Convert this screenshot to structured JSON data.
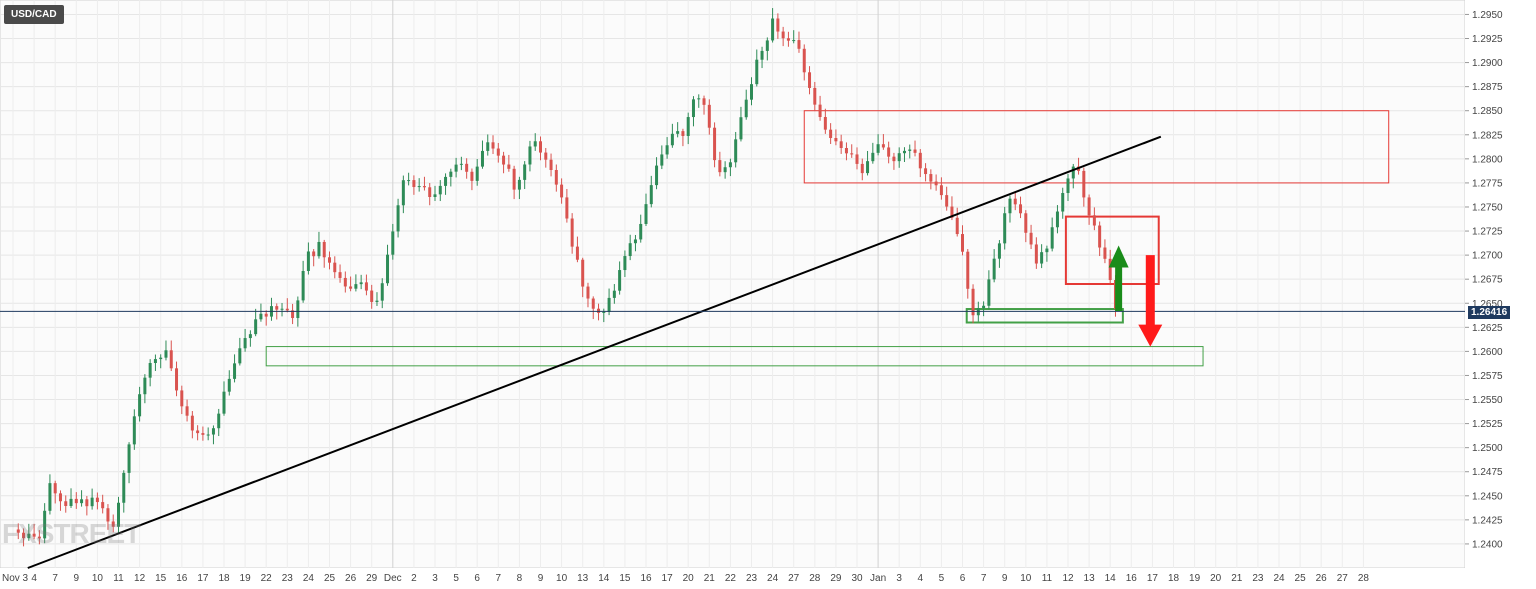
{
  "symbol": "USD/CAD",
  "watermark": "FXSTREET",
  "current_price_label": "1.26416",
  "colors": {
    "bull": "#2e8b57",
    "bear": "#d9534f",
    "grid": "#e6e6e6",
    "trendline": "#000000",
    "resistance_box": "#e53935",
    "support_box": "#43a047",
    "arrow_up": "#1a8c1a",
    "arrow_down": "#ff1a1a",
    "price_line": "#1f3a5f"
  },
  "chart_data": {
    "type": "candlestick",
    "ylim": [
      1.2375,
      1.2965
    ],
    "y_ticks": [
      "1.2400",
      "1.2425",
      "1.2450",
      "1.2475",
      "1.2500",
      "1.2525",
      "1.2550",
      "1.2575",
      "1.2600",
      "1.2625",
      "1.2650",
      "1.2675",
      "1.2700",
      "1.2725",
      "1.2750",
      "1.2775",
      "1.2800",
      "1.2825",
      "1.2850",
      "1.2875",
      "1.2900",
      "1.2925",
      "1.2950"
    ],
    "x_ticks": [
      "Nov 3",
      "4",
      "7",
      "9",
      "10",
      "11",
      "12",
      "15",
      "16",
      "17",
      "18",
      "19",
      "22",
      "23",
      "24",
      "25",
      "26",
      "29",
      "Dec",
      "2",
      "3",
      "5",
      "6",
      "7",
      "8",
      "9",
      "10",
      "13",
      "14",
      "15",
      "16",
      "17",
      "20",
      "21",
      "22",
      "23",
      "24",
      "27",
      "28",
      "29",
      "30",
      "Jan",
      "3",
      "4",
      "5",
      "6",
      "7",
      "9",
      "10",
      "11",
      "12",
      "13",
      "14",
      "16",
      "17",
      "18",
      "19",
      "20",
      "21",
      "23",
      "24",
      "25",
      "26",
      "27",
      "28"
    ],
    "current_price": 1.26416,
    "close_path": [
      [
        0,
        1.2415
      ],
      [
        1.2,
        1.24
      ],
      [
        1.8,
        1.2465
      ],
      [
        2.5,
        1.244
      ],
      [
        4,
        1.2445
      ],
      [
        4.8,
        1.2415
      ],
      [
        5.4,
        1.25
      ],
      [
        6.4,
        1.259
      ],
      [
        7.2,
        1.26
      ],
      [
        7.8,
        1.2555
      ],
      [
        8.5,
        1.252
      ],
      [
        9.2,
        1.251
      ],
      [
        9.8,
        1.254
      ],
      [
        10.6,
        1.259
      ],
      [
        11.2,
        1.262
      ],
      [
        12,
        1.264
      ],
      [
        12.6,
        1.265
      ],
      [
        13.2,
        1.263
      ],
      [
        14,
        1.27
      ],
      [
        14.6,
        1.271
      ],
      [
        15.3,
        1.268
      ],
      [
        16,
        1.266
      ],
      [
        16.5,
        1.267
      ],
      [
        17.2,
        1.2645
      ],
      [
        17.8,
        1.27
      ],
      [
        18.5,
        1.278
      ],
      [
        19.2,
        1.277
      ],
      [
        20,
        1.276
      ],
      [
        20.6,
        1.279
      ],
      [
        21.2,
        1.2795
      ],
      [
        21.8,
        1.278
      ],
      [
        22.5,
        1.2815
      ],
      [
        23.2,
        1.28
      ],
      [
        23.8,
        1.277
      ],
      [
        24.6,
        1.282
      ],
      [
        25.3,
        1.28
      ],
      [
        26,
        1.276
      ],
      [
        26.6,
        1.27
      ],
      [
        27.2,
        1.266
      ],
      [
        27.8,
        1.264
      ],
      [
        28.4,
        1.2655
      ],
      [
        29,
        1.27
      ],
      [
        29.8,
        1.273
      ],
      [
        30.5,
        1.279
      ],
      [
        31.2,
        1.282
      ],
      [
        31.8,
        1.283
      ],
      [
        32.3,
        1.287
      ],
      [
        32.8,
        1.286
      ],
      [
        33.4,
        1.278
      ],
      [
        34,
        1.28
      ],
      [
        34.8,
        1.286
      ],
      [
        35.4,
        1.291
      ],
      [
        36,
        1.294
      ],
      [
        36.6,
        1.2925
      ],
      [
        37.2,
        1.2915
      ],
      [
        37.8,
        1.287
      ],
      [
        38.4,
        1.283
      ],
      [
        39,
        1.2815
      ],
      [
        39.6,
        1.2805
      ],
      [
        40.3,
        1.2785
      ],
      [
        41,
        1.281
      ],
      [
        41.7,
        1.28
      ],
      [
        42.4,
        1.2815
      ],
      [
        43.1,
        1.279
      ],
      [
        43.8,
        1.277
      ],
      [
        44.4,
        1.274
      ],
      [
        45,
        1.27
      ],
      [
        45.5,
        1.264
      ],
      [
        46,
        1.265
      ],
      [
        46.6,
        1.27
      ],
      [
        47.2,
        1.2765
      ],
      [
        47.9,
        1.2735
      ],
      [
        48.5,
        1.269
      ],
      [
        49.2,
        1.272
      ],
      [
        49.8,
        1.277
      ],
      [
        50.3,
        1.28
      ],
      [
        50.8,
        1.276
      ],
      [
        51.3,
        1.2725
      ],
      [
        51.8,
        1.269
      ],
      [
        52.3,
        1.2641
      ]
    ],
    "trendline": {
      "from": [
        0.7,
        1.2375
      ],
      "to": [
        54.4,
        1.2823
      ]
    },
    "zones": [
      {
        "kind": "resistance",
        "x0": 37.5,
        "x1": 65.2,
        "y0": 1.2775,
        "y1": 1.285
      },
      {
        "kind": "resistance",
        "x0": 49.9,
        "x1": 54.3,
        "y0": 1.267,
        "y1": 1.274
      },
      {
        "kind": "support",
        "x0": 45.2,
        "x1": 52.6,
        "y0": 1.263,
        "y1": 1.2644
      },
      {
        "kind": "support",
        "x0": 12.0,
        "x1": 56.4,
        "y0": 1.2585,
        "y1": 1.2605
      }
    ],
    "arrows": [
      {
        "direction": "up",
        "x": 52.4,
        "from": 1.2642,
        "to": 1.271
      },
      {
        "direction": "down",
        "x": 53.9,
        "from": 1.27,
        "to": 1.2605
      }
    ]
  }
}
